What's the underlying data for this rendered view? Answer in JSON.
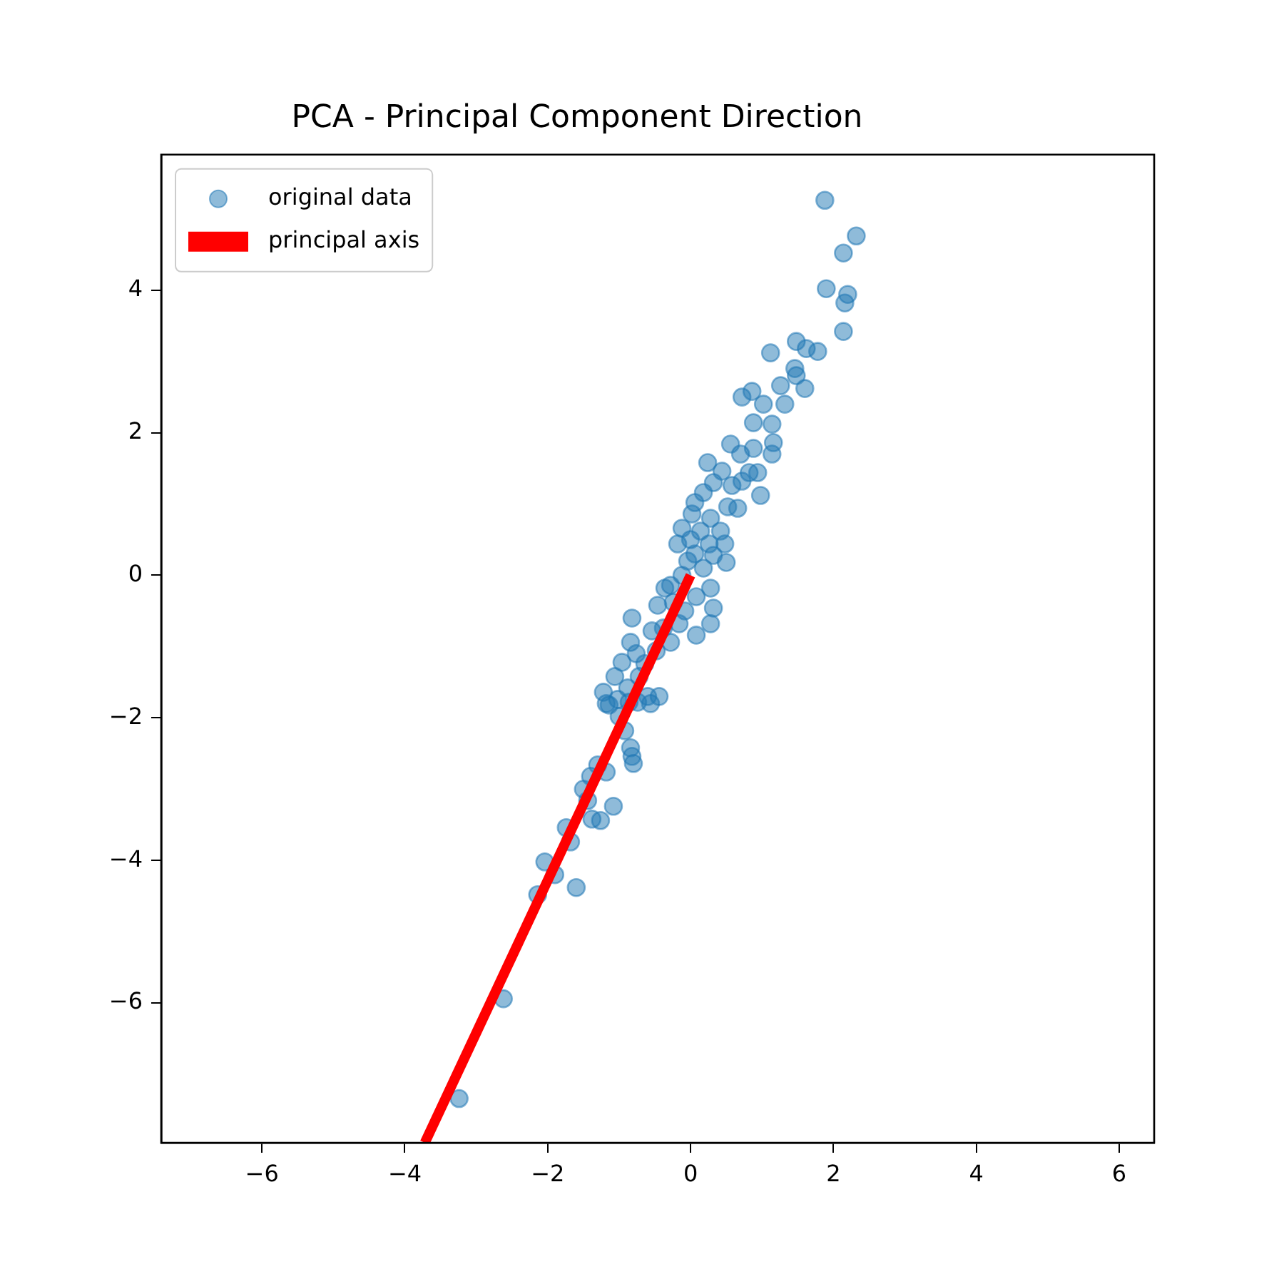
{
  "chart_data": {
    "type": "scatter",
    "title": "PCA - Principal Component Direction",
    "xlim": [
      -7.41,
      6.49
    ],
    "ylim": [
      -7.96,
      5.9
    ],
    "xticks": [
      {
        "value": -6,
        "label": "−6"
      },
      {
        "value": -4,
        "label": "−4"
      },
      {
        "value": -2,
        "label": "−2"
      },
      0,
      2,
      4,
      6
    ],
    "yticks": [
      {
        "value": -6,
        "label": "−6"
      },
      {
        "value": -4,
        "label": "−4"
      },
      {
        "value": -2,
        "label": "−2"
      },
      0,
      2,
      4
    ],
    "grid": false,
    "legend": "top left",
    "series": [
      {
        "name": "original data",
        "type": "scatter",
        "marker": "circle",
        "color": "#1f77b4",
        "x": [
          1.88,
          2.32,
          2.14,
          1.9,
          2.2,
          2.16,
          2.14,
          1.48,
          1.78,
          1.62,
          1.12,
          1.26,
          1.46,
          1.6,
          1.48,
          0.72,
          0.86,
          1.02,
          1.32,
          0.88,
          1.14,
          1.16,
          0.56,
          0.88,
          0.7,
          1.14,
          0.24,
          0.44,
          0.82,
          0.94,
          0.32,
          0.58,
          0.72,
          0.98,
          0.18,
          0.06,
          0.52,
          0.66,
          0.02,
          0.28,
          -0.12,
          0.14,
          0.42,
          0,
          -0.18,
          0.26,
          0.48,
          0.06,
          0.32,
          -0.04,
          0.5,
          0.18,
          -0.12,
          -0.28,
          -0.36,
          0.28,
          0.08,
          -0.24,
          -0.46,
          -0.08,
          0.32,
          -0.82,
          -0.16,
          0.28,
          -0.38,
          -0.54,
          0.08,
          -0.84,
          -0.28,
          -0.76,
          -0.48,
          -0.96,
          -0.64,
          -1.06,
          -0.72,
          -0.88,
          -1.22,
          -0.6,
          -1.02,
          -1.14,
          -0.74,
          -0.86,
          -0.44,
          -0.56,
          -1.18,
          -1,
          -0.92,
          -0.84,
          -0.82,
          -0.8,
          -1.3,
          -1.18,
          -1.4,
          -1.5,
          -1.44,
          -1.08,
          -1.38,
          -1.26,
          -1.74,
          -1.68,
          -2.04,
          -1.9,
          -2.14,
          -1.6,
          -2.62,
          -3.24
        ],
        "values": [
          5.26,
          4.76,
          4.52,
          4.02,
          3.94,
          3.82,
          3.42,
          3.28,
          3.14,
          3.18,
          3.12,
          2.66,
          2.9,
          2.62,
          2.8,
          2.5,
          2.58,
          2.4,
          2.4,
          2.14,
          2.12,
          1.86,
          1.84,
          1.78,
          1.7,
          1.7,
          1.58,
          1.46,
          1.44,
          1.44,
          1.3,
          1.26,
          1.32,
          1.12,
          1.16,
          1.02,
          0.96,
          0.94,
          0.86,
          0.8,
          0.66,
          0.62,
          0.62,
          0.5,
          0.44,
          0.44,
          0.44,
          0.3,
          0.28,
          0.2,
          0.18,
          0.1,
          0,
          -0.14,
          -0.18,
          -0.18,
          -0.3,
          -0.38,
          -0.42,
          -0.5,
          -0.46,
          -0.6,
          -0.68,
          -0.68,
          -0.74,
          -0.78,
          -0.84,
          -0.94,
          -0.94,
          -1.1,
          -1.06,
          -1.22,
          -1.24,
          -1.42,
          -1.42,
          -1.58,
          -1.64,
          -1.7,
          -1.74,
          -1.82,
          -1.78,
          -1.78,
          -1.7,
          -1.8,
          -1.8,
          -1.98,
          -2.18,
          -2.42,
          -2.54,
          -2.64,
          -2.66,
          -2.76,
          -2.82,
          -3,
          -3.16,
          -3.24,
          -3.42,
          -3.44,
          -3.54,
          -3.74,
          -4.02,
          -4.2,
          -4.48,
          -4.38,
          -5.94,
          -7.34
        ]
      },
      {
        "name": "principal axis",
        "type": "line",
        "color": "#ff0000",
        "x": [
          0,
          -3.72
        ],
        "values": [
          0,
          -7.96
        ]
      }
    ]
  }
}
